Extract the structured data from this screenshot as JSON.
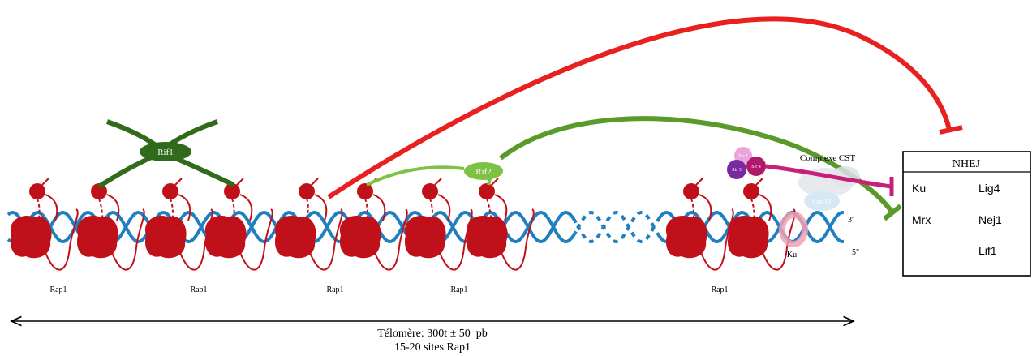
{
  "proteins": {
    "rif1": "Rif1",
    "rif2": "Rif2",
    "rap1": [
      "Rap1",
      "Rap1",
      "Rap1",
      "Rap1",
      "Rap1"
    ],
    "sir2": "Sir 2",
    "sir3": "Sir 3",
    "sir4": "Sir 4",
    "ku": "Ku",
    "cdc13": "Cdc 13",
    "cst_label": "Complexe CST"
  },
  "ends": {
    "three_prime": "3'",
    "five_prime": "5\""
  },
  "nhej": {
    "title": "NHEJ",
    "left_items": [
      "Ku",
      "Mrx"
    ],
    "right_items": [
      "Lig4",
      "Nej1",
      "Lif1"
    ]
  },
  "telomere": {
    "length_label": "Télomère: 300t ± 50  pb",
    "sites_label": "15-20 sites Rap1"
  },
  "colors": {
    "dna": "#1f7fc0",
    "rap1": "#c0111a",
    "rif1": "#2f6b1a",
    "rif2": "#7dc242",
    "rif1_inhibition": "#e8201f",
    "rif2_inhibition": "#5a9a2a",
    "sir_inhibition": "#c8207a"
  }
}
